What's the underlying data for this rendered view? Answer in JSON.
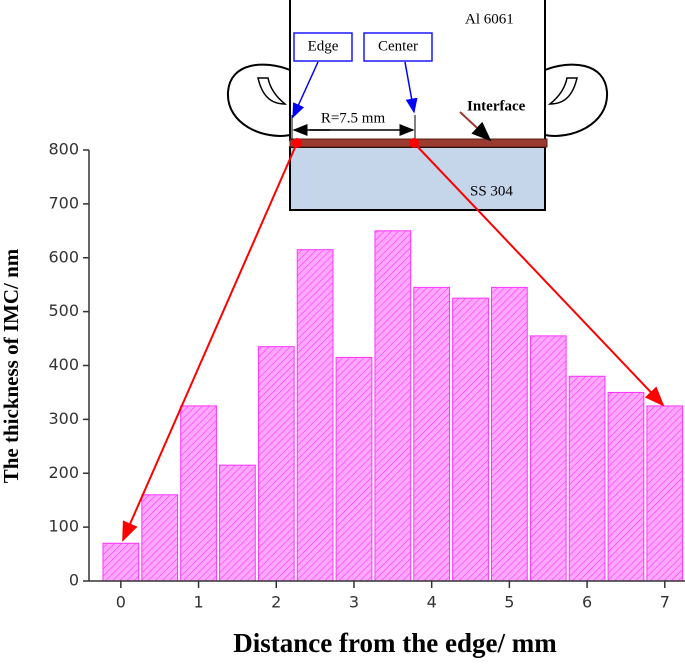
{
  "chart_data": {
    "type": "bar",
    "x": [
      0,
      0.5,
      1,
      1.5,
      2,
      2.5,
      3,
      3.5,
      4,
      4.5,
      5,
      5.5,
      6,
      6.5,
      7
    ],
    "values": [
      70,
      160,
      325,
      215,
      435,
      615,
      415,
      650,
      545,
      525,
      545,
      455,
      380,
      350,
      325
    ],
    "color": "#ff33ff",
    "xlabel": "Distance from the edge/ mm",
    "ylabel": "The thickness of IMC/ nm",
    "xlim": [
      -0.41,
      7.26
    ],
    "xticks": [
      0,
      1,
      2,
      3,
      4,
      5,
      6,
      7
    ],
    "ylim": [
      0,
      800
    ],
    "yticks": [
      0,
      100,
      200,
      300,
      400,
      500,
      600,
      700,
      800
    ],
    "annotations": [
      "Al 6061",
      "Edge",
      "Center",
      "R=7.5 mm",
      "Interface",
      "SS 304"
    ]
  }
}
